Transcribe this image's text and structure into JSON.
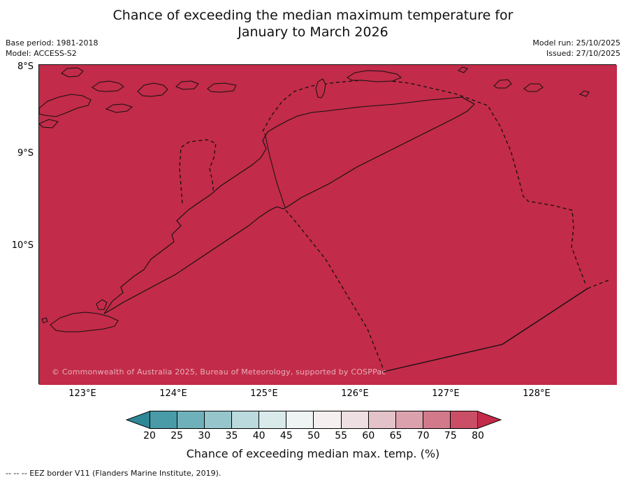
{
  "header": {
    "title_line1": "Chance of exceeding the median maximum temperature for",
    "title_line2": "January to March 2026",
    "base_period": "Base period: 1981-2018",
    "model": "Model: ACCESS-S2",
    "model_run": "Model run: 25/10/2025",
    "issued": "Issued: 27/10/2025"
  },
  "map": {
    "fill_color": "#c22b49",
    "coastline_color": "#111111",
    "copyright": "© Commonwealth of Australia 2025, Bureau of Meteorology, supported by COSPPac",
    "y_ticks": [
      "8°S",
      "9°S",
      "10°S"
    ],
    "x_ticks": [
      "123°E",
      "124°E",
      "125°E",
      "126°E",
      "127°E",
      "128°E"
    ]
  },
  "colorbar": {
    "label": "Chance of exceeding median max. temp. (%)",
    "ticks": [
      20,
      25,
      30,
      35,
      40,
      45,
      50,
      55,
      60,
      65,
      70,
      75,
      80
    ],
    "segment_colors": [
      "#4a9ba8",
      "#6fb1bb",
      "#96c6cc",
      "#badadd",
      "#d9eaeb",
      "#eef4f4",
      "#f6efef",
      "#eedfe2",
      "#e4c2c9",
      "#dba2ad",
      "#d2798c",
      "#ca4f66"
    ],
    "left_arrow_color": "#2e8794",
    "right_arrow_color": "#c22b49"
  },
  "footer": {
    "eez_note": "-- -- -- EEZ border V11 (Flanders Marine Institute, 2019)."
  },
  "chart_data": {
    "type": "heatmap",
    "title": "Chance of exceeding the median maximum temperature for January to March 2026",
    "colorbar_label": "Chance of exceeding median max. temp. (%)",
    "colorbar_ticks": [
      20,
      25,
      30,
      35,
      40,
      45,
      50,
      55,
      60,
      65,
      70,
      75,
      80
    ],
    "x_ticks": [
      "123°E",
      "124°E",
      "125°E",
      "126°E",
      "127°E",
      "128°E"
    ],
    "y_ticks": [
      "8°S",
      "9°S",
      "10°S"
    ],
    "value_summary": "entire mapped region shaded in the >80% class (dark red)"
  }
}
